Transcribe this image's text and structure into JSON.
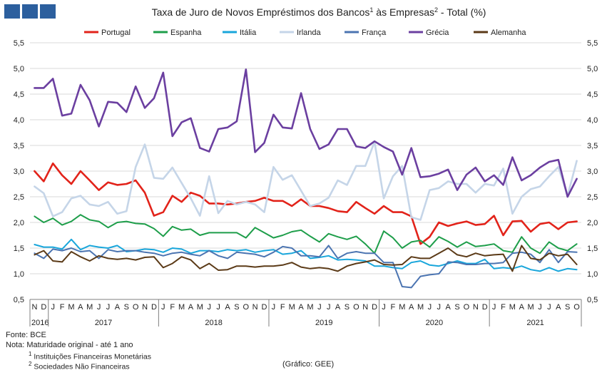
{
  "header": {
    "logo_icon": "gee-logo-icon"
  },
  "chart_data": {
    "type": "line",
    "title_main": "Taxa de Juro de Novos Empréstimos dos Bancos",
    "title_sup1": "1",
    "title_mid": " às Empresas",
    "title_sup2": "2",
    "title_end": " - Total (%)",
    "xlabel": "",
    "ylabel": "",
    "ylim": [
      0.5,
      5.5
    ],
    "yticks": [
      "5,5",
      "5,0",
      "4,5",
      "4,0",
      "3,5",
      "3,0",
      "2,5",
      "2,0",
      "1,5",
      "1,0",
      "0,5"
    ],
    "ytick_values": [
      5.5,
      5.0,
      4.5,
      4.0,
      3.5,
      3.0,
      2.5,
      2.0,
      1.5,
      1.0,
      0.5
    ],
    "months": [
      "N",
      "D",
      "J",
      "F",
      "M",
      "A",
      "M",
      "J",
      "J",
      "A",
      "S",
      "O",
      "N",
      "D",
      "J",
      "F",
      "M",
      "A",
      "M",
      "J",
      "J",
      "A",
      "S",
      "O",
      "N",
      "D",
      "J",
      "F",
      "M",
      "A",
      "M",
      "J",
      "J",
      "A",
      "S",
      "O",
      "N",
      "D",
      "J",
      "F",
      "M",
      "A",
      "M",
      "J",
      "J",
      "A",
      "S",
      "O",
      "N",
      "D",
      "J",
      "F",
      "M",
      "A",
      "M",
      "J",
      "J",
      "A",
      "S",
      "O"
    ],
    "years": [
      {
        "label": "2016",
        "start": 0,
        "end": 1
      },
      {
        "label": "2017",
        "start": 2,
        "end": 13
      },
      {
        "label": "2018",
        "start": 14,
        "end": 25
      },
      {
        "label": "2019",
        "start": 26,
        "end": 37
      },
      {
        "label": "2020",
        "start": 38,
        "end": 49
      },
      {
        "label": "2021",
        "start": 50,
        "end": 59
      }
    ],
    "legend": "top",
    "series": [
      {
        "name": "Portugal",
        "color": "#e2231a",
        "width": 2.6,
        "values": [
          3.0,
          2.8,
          3.15,
          2.92,
          2.75,
          3.0,
          2.82,
          2.63,
          2.78,
          2.73,
          2.75,
          2.82,
          2.58,
          2.13,
          2.2,
          2.52,
          2.4,
          2.58,
          2.52,
          2.37,
          2.37,
          2.35,
          2.37,
          2.4,
          2.42,
          2.48,
          2.42,
          2.42,
          2.32,
          2.45,
          2.32,
          2.32,
          2.28,
          2.22,
          2.2,
          2.4,
          2.28,
          2.17,
          2.32,
          2.2,
          2.2,
          2.12,
          1.58,
          1.72,
          2.0,
          1.93,
          1.98,
          2.02,
          1.95,
          1.97,
          2.13,
          1.75,
          2.02,
          2.03,
          1.82,
          1.97,
          2.0,
          1.87,
          2.0,
          2.02
        ]
      },
      {
        "name": "Espanha",
        "color": "#1e9e4a",
        "width": 2.0,
        "values": [
          2.12,
          2.0,
          2.08,
          1.95,
          2.02,
          2.15,
          2.05,
          2.02,
          1.9,
          2.0,
          2.02,
          1.98,
          1.97,
          1.88,
          1.73,
          1.92,
          1.85,
          1.87,
          1.75,
          1.8,
          1.8,
          1.8,
          1.8,
          1.7,
          1.9,
          1.8,
          1.7,
          1.75,
          1.82,
          1.85,
          1.73,
          1.62,
          1.78,
          1.72,
          1.67,
          1.73,
          1.58,
          1.4,
          1.83,
          1.7,
          1.5,
          1.62,
          1.65,
          1.52,
          1.72,
          1.63,
          1.52,
          1.62,
          1.53,
          1.55,
          1.58,
          1.45,
          1.42,
          1.72,
          1.5,
          1.4,
          1.62,
          1.5,
          1.45,
          1.58
        ]
      },
      {
        "name": "Itália",
        "color": "#19a6db",
        "width": 2.0,
        "values": [
          1.57,
          1.52,
          1.52,
          1.48,
          1.67,
          1.47,
          1.55,
          1.52,
          1.5,
          1.55,
          1.43,
          1.45,
          1.48,
          1.47,
          1.42,
          1.5,
          1.48,
          1.4,
          1.45,
          1.45,
          1.43,
          1.47,
          1.45,
          1.47,
          1.42,
          1.45,
          1.47,
          1.38,
          1.4,
          1.45,
          1.3,
          1.32,
          1.35,
          1.27,
          1.28,
          1.27,
          1.25,
          1.15,
          1.15,
          1.12,
          1.1,
          1.22,
          1.25,
          1.17,
          1.15,
          1.2,
          1.25,
          1.2,
          1.2,
          1.28,
          1.1,
          1.12,
          1.1,
          1.15,
          1.08,
          1.05,
          1.12,
          1.05,
          1.1,
          1.08
        ]
      },
      {
        "name": "Irlanda",
        "color": "#c5d5e8",
        "width": 2.6,
        "values": [
          2.7,
          2.57,
          2.12,
          2.2,
          2.47,
          2.52,
          2.35,
          2.32,
          2.4,
          2.17,
          2.22,
          3.08,
          3.52,
          2.87,
          2.85,
          3.07,
          2.77,
          2.47,
          2.13,
          2.9,
          2.18,
          2.42,
          2.35,
          2.4,
          2.35,
          2.2,
          3.08,
          2.83,
          2.92,
          2.62,
          2.32,
          2.37,
          2.48,
          2.82,
          2.73,
          3.1,
          3.1,
          3.57,
          2.47,
          2.9,
          3.1,
          2.1,
          2.05,
          2.63,
          2.67,
          2.8,
          2.75,
          2.75,
          2.58,
          2.75,
          2.72,
          3.05,
          2.17,
          2.5,
          2.65,
          2.7,
          2.9,
          3.08,
          2.52,
          3.2
        ]
      },
      {
        "name": "França",
        "color": "#4b74b1",
        "width": 2.0,
        "values": [
          1.4,
          1.3,
          1.48,
          1.45,
          1.5,
          1.43,
          1.45,
          1.3,
          1.47,
          1.43,
          1.45,
          1.45,
          1.42,
          1.4,
          1.35,
          1.4,
          1.42,
          1.38,
          1.35,
          1.45,
          1.35,
          1.3,
          1.42,
          1.4,
          1.38,
          1.33,
          1.42,
          1.53,
          1.5,
          1.35,
          1.35,
          1.33,
          1.55,
          1.3,
          1.4,
          1.43,
          1.4,
          1.4,
          1.22,
          1.22,
          0.75,
          0.73,
          0.95,
          0.98,
          1.0,
          1.23,
          1.22,
          1.18,
          1.18,
          1.2,
          1.2,
          1.22,
          1.4,
          1.42,
          1.38,
          1.22,
          1.47,
          1.22,
          1.43,
          1.42
        ]
      },
      {
        "name": "Grécia",
        "color": "#6b3fa0",
        "width": 2.6,
        "values": [
          4.62,
          4.62,
          4.8,
          4.08,
          4.12,
          4.68,
          4.38,
          3.87,
          4.35,
          4.33,
          4.15,
          4.65,
          4.23,
          4.42,
          4.92,
          3.68,
          3.95,
          4.03,
          3.45,
          3.38,
          3.82,
          3.85,
          3.97,
          4.98,
          3.37,
          3.55,
          4.1,
          3.85,
          3.83,
          4.52,
          3.82,
          3.43,
          3.52,
          3.82,
          3.82,
          3.48,
          3.45,
          3.58,
          3.47,
          3.38,
          2.93,
          3.45,
          2.88,
          2.9,
          2.95,
          3.03,
          2.63,
          2.93,
          3.07,
          2.8,
          2.92,
          2.73,
          3.27,
          2.82,
          2.92,
          3.07,
          3.18,
          3.22,
          2.5,
          2.85
        ]
      },
      {
        "name": "Alemanha",
        "color": "#5b3a17",
        "width": 2.0,
        "values": [
          1.37,
          1.45,
          1.25,
          1.23,
          1.43,
          1.33,
          1.25,
          1.35,
          1.3,
          1.28,
          1.3,
          1.27,
          1.32,
          1.33,
          1.12,
          1.2,
          1.33,
          1.27,
          1.1,
          1.2,
          1.07,
          1.08,
          1.15,
          1.15,
          1.13,
          1.15,
          1.15,
          1.17,
          1.22,
          1.13,
          1.1,
          1.12,
          1.1,
          1.05,
          1.15,
          1.2,
          1.23,
          1.27,
          1.18,
          1.17,
          1.18,
          1.33,
          1.3,
          1.3,
          1.4,
          1.5,
          1.37,
          1.33,
          1.4,
          1.35,
          1.37,
          1.38,
          1.05,
          1.55,
          1.3,
          1.27,
          1.4,
          1.35,
          1.38,
          1.18
        ]
      }
    ]
  },
  "footer": {
    "source": "Fonte: BCE",
    "note": "Nota: Maturidade original - até 1 ano",
    "note1_sup": "1",
    "note1": " Instituições Financeiras Monetárias",
    "note2_sup": "2",
    "note2": " Sociedades Não Financeiras",
    "credit": "(Gráfico: GEE)"
  }
}
